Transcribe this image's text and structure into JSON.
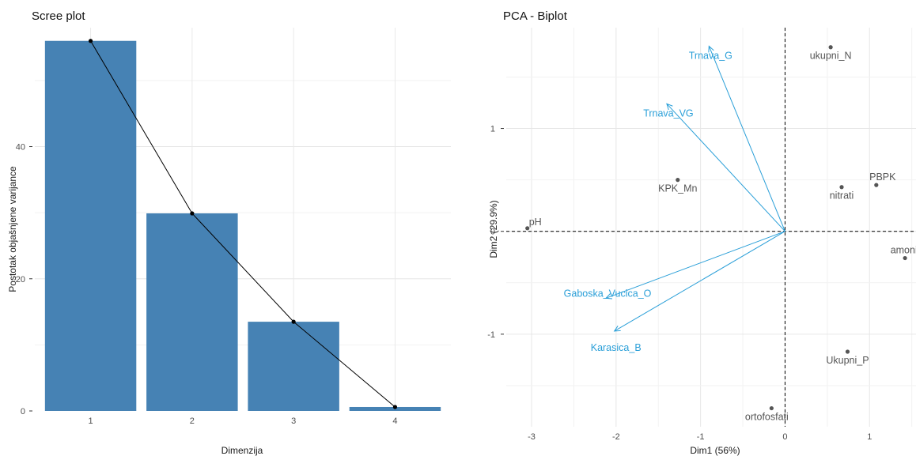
{
  "chart_data": [
    {
      "type": "bar",
      "title": "Scree plot",
      "xlabel": "Dimenzija",
      "ylabel": "Postotak objašnjene varijance",
      "categories": [
        "1",
        "2",
        "3",
        "4"
      ],
      "values": [
        56.0,
        29.9,
        13.5,
        0.6
      ],
      "overlay_line": true,
      "ylim": [
        0,
        58
      ],
      "yticks": [
        "0",
        "20",
        "40"
      ],
      "grid": true,
      "colors": {
        "bar": "#4682b4",
        "line": "#000000"
      }
    },
    {
      "type": "scatter",
      "title": "PCA - Biplot",
      "xlabel": "Dim1 (56%)",
      "ylabel": "Dim2 (29.9%)",
      "xlim": [
        -3.3,
        1.55
      ],
      "ylim": [
        -1.9,
        1.98
      ],
      "xticks": [
        "-3",
        "-2",
        "-1",
        "0",
        "1"
      ],
      "yticks": [
        "-1",
        "0",
        "1"
      ],
      "grid": true,
      "reference_lines": {
        "x": 0,
        "y": 0,
        "style": "dashed"
      },
      "points": [
        {
          "label": "pH",
          "x": -3.05,
          "y": 0.03
        },
        {
          "label": "KPK_Mn",
          "x": -1.27,
          "y": 0.5
        },
        {
          "label": "ukupni_N",
          "x": 0.54,
          "y": 1.79
        },
        {
          "label": "nitrati",
          "x": 0.67,
          "y": 0.43
        },
        {
          "label": "PBPK",
          "x": 1.08,
          "y": 0.45
        },
        {
          "label": "amonij",
          "x": 1.42,
          "y": -0.26
        },
        {
          "label": "Ukupni_P",
          "x": 0.74,
          "y": -1.17
        },
        {
          "label": "ortofosfati",
          "x": -0.16,
          "y": -1.72
        }
      ],
      "vectors": [
        {
          "label": "Trnava_G",
          "x": -0.9,
          "y": 1.8
        },
        {
          "label": "Trnava_VG",
          "x": -1.4,
          "y": 1.24
        },
        {
          "label": "Gaboska_Vucica_O",
          "x": -2.12,
          "y": -0.65
        },
        {
          "label": "Karasica_B",
          "x": -2.02,
          "y": -0.97
        }
      ],
      "colors": {
        "vector": "#2a9fd8",
        "point": "#555555"
      }
    }
  ]
}
